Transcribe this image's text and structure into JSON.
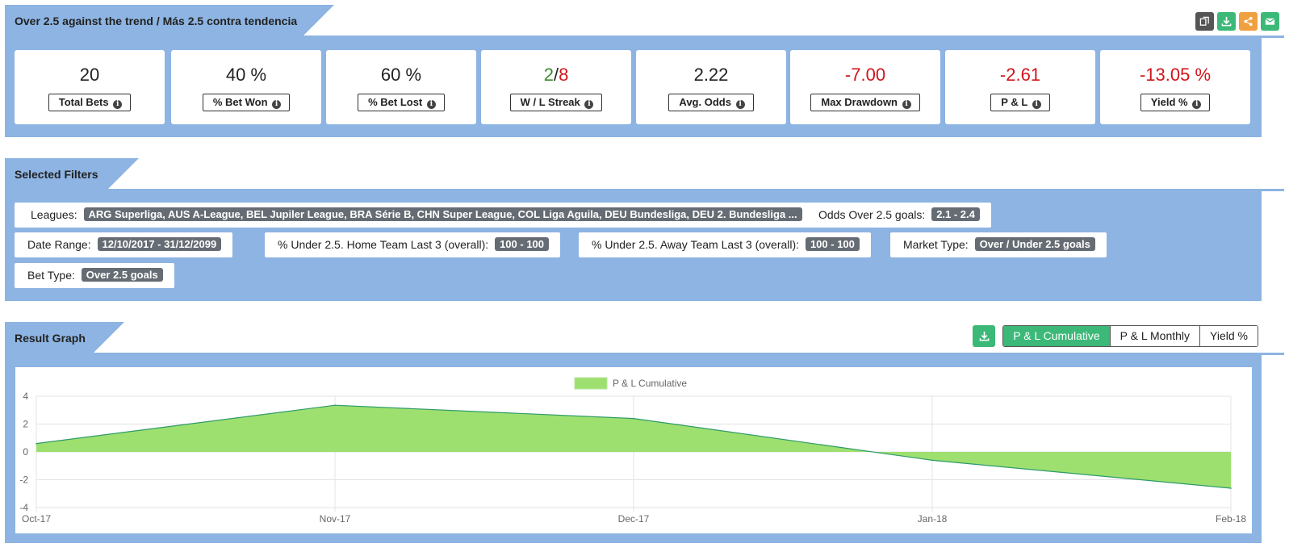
{
  "header": {
    "title": "Over 2.5 against the trend / Más 2.5 contra tendencia",
    "icons": [
      "copy-icon",
      "download-icon",
      "share-icon",
      "email-icon"
    ],
    "icon_colors": [
      "#555555",
      "#3cb878",
      "#f0a040",
      "#3cb878"
    ]
  },
  "stats": [
    {
      "value": "20",
      "label": "Total Bets",
      "color": "#222222"
    },
    {
      "value": "40 %",
      "label": "% Bet Won",
      "color": "#222222"
    },
    {
      "value": "60 %",
      "label": "% Bet Lost",
      "color": "#222222"
    },
    {
      "value_w": "2",
      "value_l": "8",
      "sep": "/",
      "label": "W / L Streak"
    },
    {
      "value": "2.22",
      "label": "Avg. Odds",
      "color": "#222222"
    },
    {
      "value": "-7.00",
      "label": "Max Drawdown",
      "color": "#d0151c"
    },
    {
      "value": "-2.61",
      "label": "P & L",
      "color": "#d0151c"
    },
    {
      "value": "-13.05 %",
      "label": "Yield %",
      "color": "#d0151c"
    }
  ],
  "filters": {
    "title": "Selected Filters",
    "items": [
      {
        "label": "Leagues:",
        "value": "ARG Superliga, AUS A-League, BEL Jupiler League, BRA Série B, CHN Super League, COL Liga Aguila, DEU Bundesliga, DEU 2. Bundesliga ..."
      },
      {
        "label": "Odds Over 2.5 goals:",
        "value": "2.1 - 2.4"
      },
      {
        "label": "Date Range:",
        "value": "12/10/2017 - 31/12/2099"
      },
      {
        "label": "% Under 2.5. Home Team Last 3 (overall):",
        "value": "100 - 100"
      },
      {
        "label": "% Under 2.5. Away Team Last 3 (overall):",
        "value": "100 - 100"
      },
      {
        "label": "Market Type:",
        "value": "Over / Under 2.5 goals"
      },
      {
        "label": "Bet Type:",
        "value": "Over 2.5 goals"
      }
    ]
  },
  "graph": {
    "title": "Result Graph",
    "tabs": [
      "P & L Cumulative",
      "P & L Monthly",
      "Yield %"
    ],
    "active_tab": "P & L Cumulative"
  },
  "chart_data": {
    "type": "area",
    "x": [
      "Oct-17",
      "Nov-17",
      "Dec-17",
      "Jan-18",
      "Feb-18"
    ],
    "series": [
      {
        "name": "P & L Cumulative",
        "values": [
          0.6,
          3.35,
          2.4,
          -0.6,
          -2.61
        ],
        "color": "#9de06f"
      }
    ],
    "ylim": [
      -4,
      4
    ],
    "yticks": [
      4,
      2,
      0,
      -2,
      -4
    ],
    "grid": true,
    "legend": "top-center"
  }
}
